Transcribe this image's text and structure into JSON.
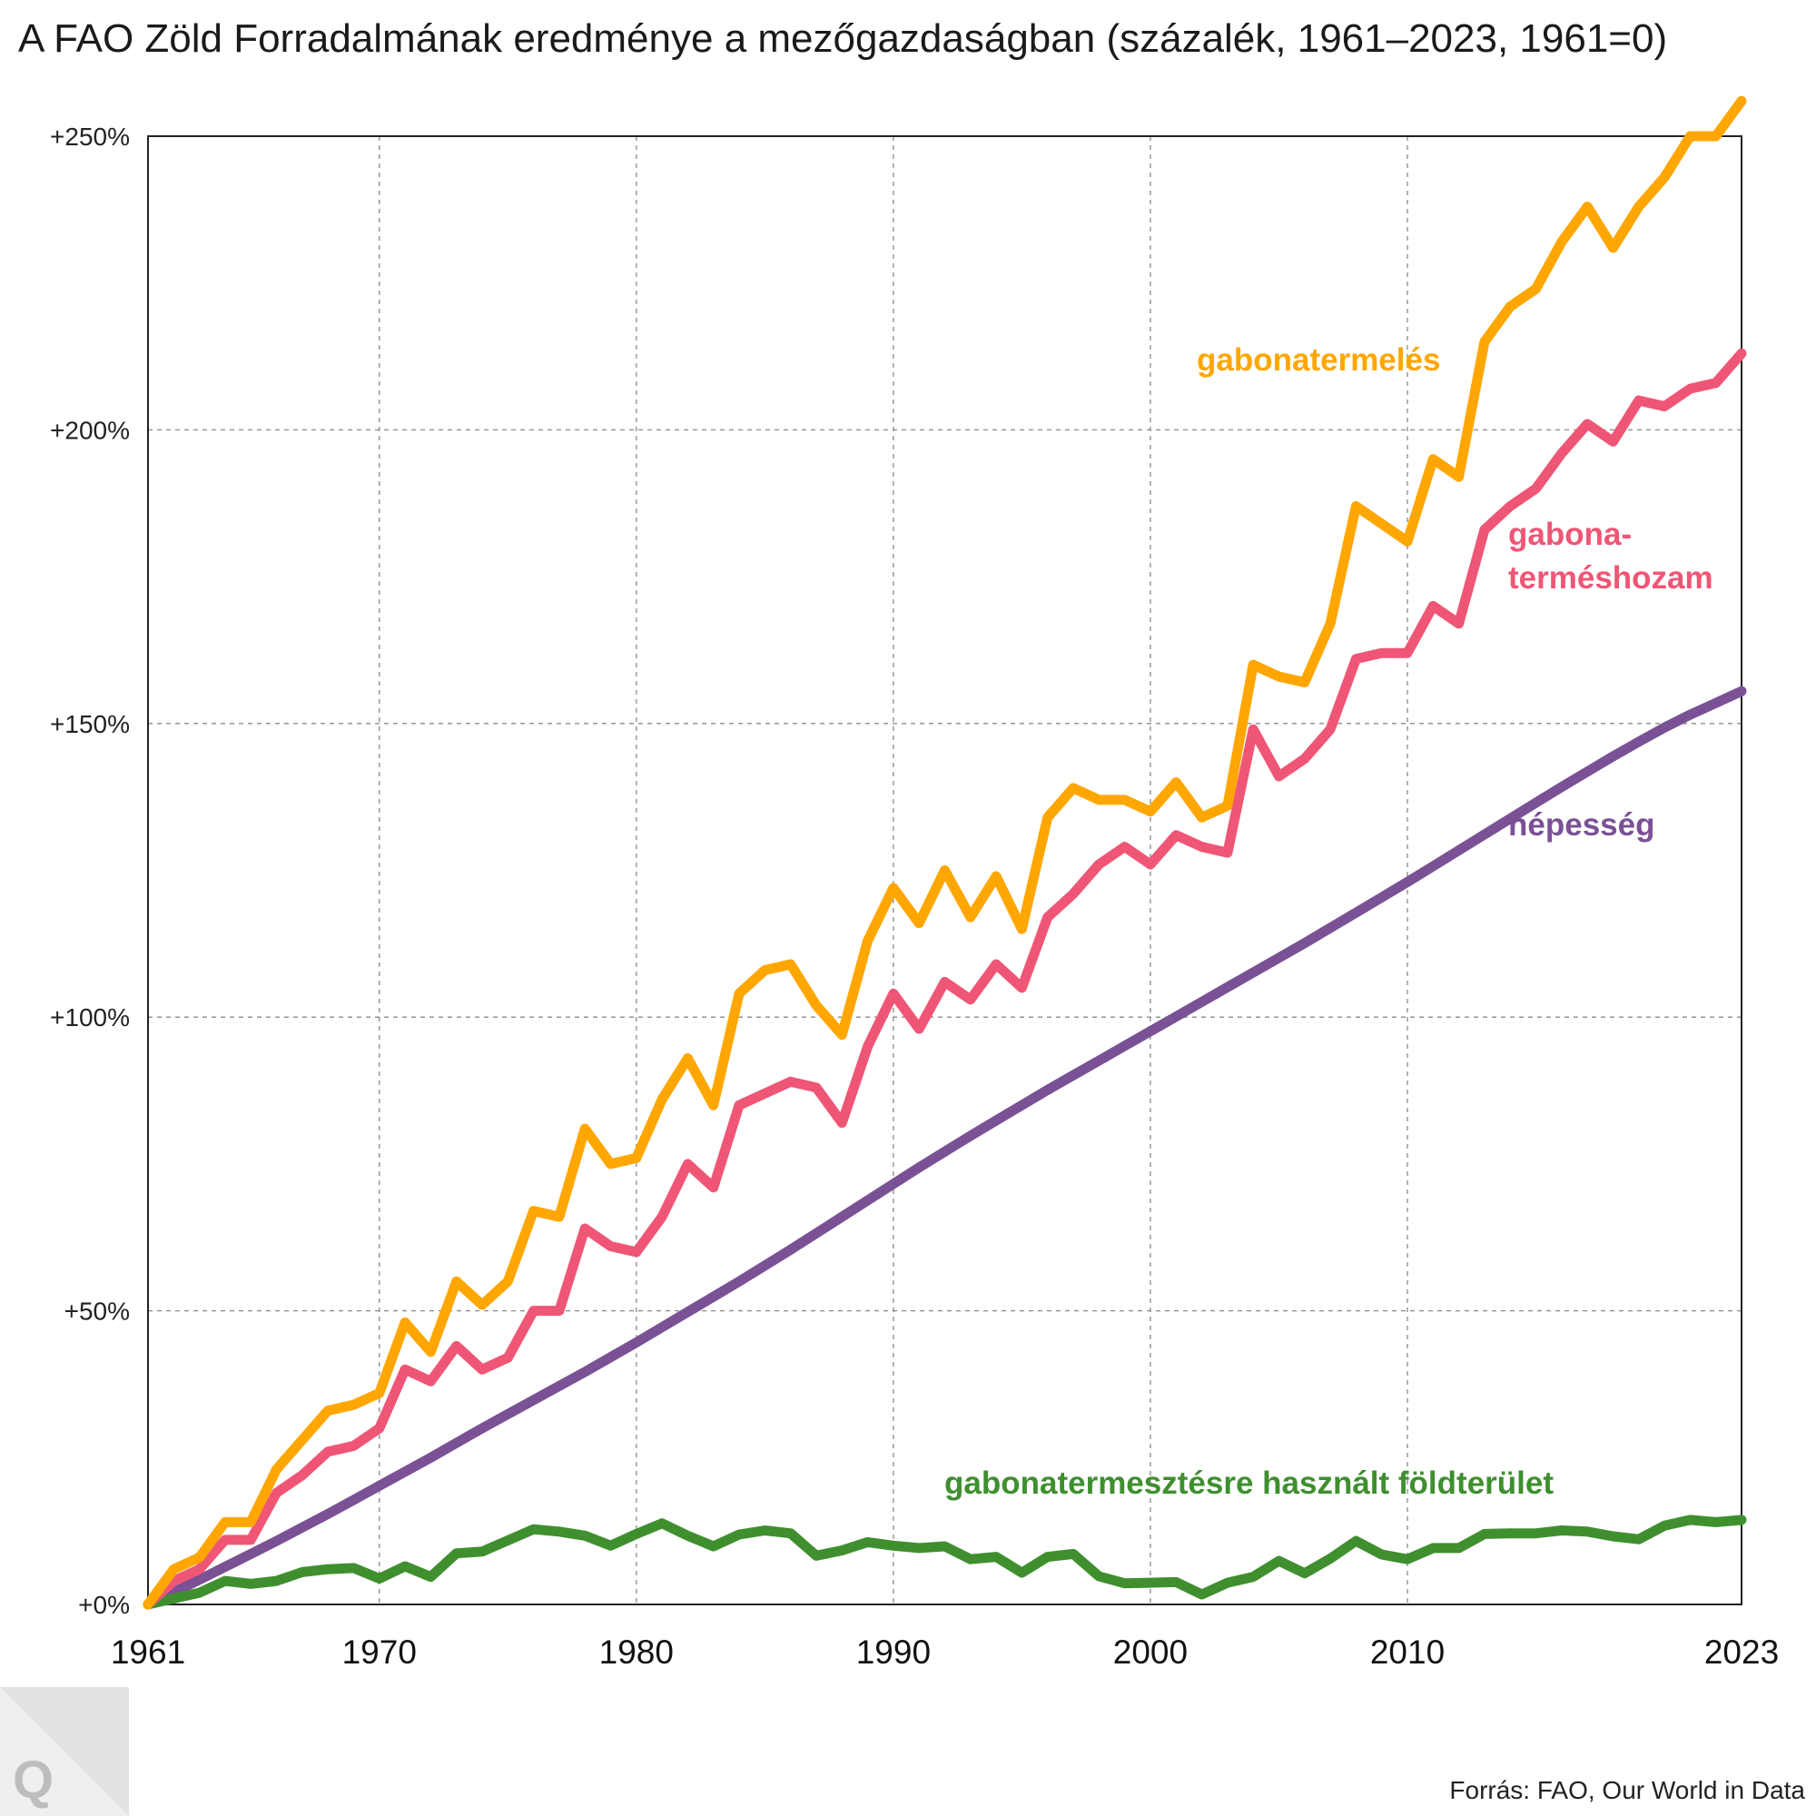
{
  "title": "A FAO Zöld Forradalmának eredménye a mezőgazdaságban (százalék, 1961–2023, 1961=0)",
  "source": "Forrás: FAO, Our World in Data",
  "logo": "Q",
  "chart_data": {
    "type": "line",
    "title": "A FAO Zöld Forradalmának eredménye a mezőgazdaságban (százalék, 1961–2023, 1961=0)",
    "xlabel": "",
    "ylabel": "",
    "xlim": [
      1961,
      2023
    ],
    "ylim": [
      0,
      250
    ],
    "x_ticks": [
      1961,
      1970,
      1980,
      1990,
      2000,
      2010,
      2023
    ],
    "x_tick_labels": [
      "1961",
      "1970",
      "1980",
      "1990",
      "2000",
      "2010",
      "2023"
    ],
    "y_ticks": [
      0,
      50,
      100,
      150,
      200,
      250
    ],
    "y_tick_labels": [
      "+0%",
      "+50%",
      "+100%",
      "+150%",
      "+200%",
      "+250%"
    ],
    "grid": true,
    "series": [
      {
        "name": "gabonatermelés",
        "label": "gabonatermelés",
        "color": "#ffa600",
        "x_start": 1961,
        "values": [
          0,
          6,
          8,
          14,
          14,
          23,
          28,
          33,
          34,
          36,
          48,
          43,
          55,
          51,
          55,
          67,
          66,
          81,
          75,
          76,
          86,
          93,
          85,
          104,
          108,
          109,
          102,
          97,
          113,
          122,
          116,
          125,
          117,
          124,
          115,
          134,
          139,
          137,
          137,
          135,
          140,
          134,
          136,
          160,
          158,
          157,
          167,
          187,
          184,
          181,
          195,
          192,
          215,
          221,
          224,
          232,
          238,
          231,
          238,
          243,
          250,
          250,
          256
        ]
      },
      {
        "name": "gabona-terméshozam",
        "label": "gabona-\nterméshozam",
        "color": "#ef5675",
        "x_start": 1961,
        "values": [
          0,
          4,
          6,
          11,
          11,
          19,
          22,
          26,
          27,
          30,
          40,
          38,
          44,
          40,
          42,
          50,
          50,
          64,
          61,
          60,
          66,
          75,
          71,
          85,
          87,
          89,
          88,
          82,
          95,
          104,
          98,
          106,
          103,
          109,
          105,
          117,
          121,
          126,
          129,
          126,
          131,
          129,
          128,
          149,
          141,
          144,
          149,
          161,
          162,
          162,
          170,
          167,
          183,
          187,
          190,
          196,
          201,
          198,
          205,
          204,
          207,
          208,
          213
        ]
      },
      {
        "name": "népesség",
        "label": "népesség",
        "color": "#7a5195",
        "x_start": 1961,
        "values": [
          0,
          2.1,
          4.2,
          6.4,
          8.6,
          10.8,
          13.1,
          15.4,
          17.8,
          20.2,
          22.6,
          25,
          27.5,
          30,
          32.4,
          34.8,
          37.2,
          39.6,
          42.1,
          44.6,
          47.2,
          49.8,
          52.4,
          55,
          57.7,
          60.4,
          63.2,
          66,
          68.8,
          71.6,
          74.4,
          77.1,
          79.8,
          82.4,
          85,
          87.6,
          90.1,
          92.6,
          95.1,
          97.6,
          100.1,
          102.6,
          105.1,
          107.6,
          110.1,
          112.6,
          115.2,
          117.8,
          120.4,
          123,
          125.7,
          128.4,
          131.1,
          133.8,
          136.5,
          139.2,
          141.8,
          144.4,
          146.9,
          149.3,
          151.5,
          153.5,
          155.5
        ]
      },
      {
        "name": "gabonatermesztésre használt földterület",
        "label": "gabonatermesztésre használt földterület",
        "color": "#3f8f2f",
        "x_start": 1961,
        "values": [
          0,
          1,
          2,
          4,
          3.5,
          4,
          5.5,
          6,
          6.2,
          4.4,
          6.5,
          4.7,
          8.7,
          9,
          10.9,
          12.8,
          12.4,
          11.7,
          10,
          12,
          13.8,
          11.7,
          9.9,
          11.9,
          12.6,
          12.1,
          8.3,
          9.2,
          10.6,
          10,
          9.6,
          9.9,
          7.7,
          8.1,
          5.4,
          8.1,
          8.6,
          4.8,
          3.6,
          3.7,
          3.8,
          1.7,
          3.7,
          4.7,
          7.4,
          5.3,
          7.8,
          10.8,
          8.5,
          7.7,
          9.6,
          9.6,
          12,
          12.1,
          12.1,
          12.6,
          12.4,
          11.6,
          11.1,
          13.4,
          14.4,
          14,
          14.4
        ]
      }
    ]
  }
}
